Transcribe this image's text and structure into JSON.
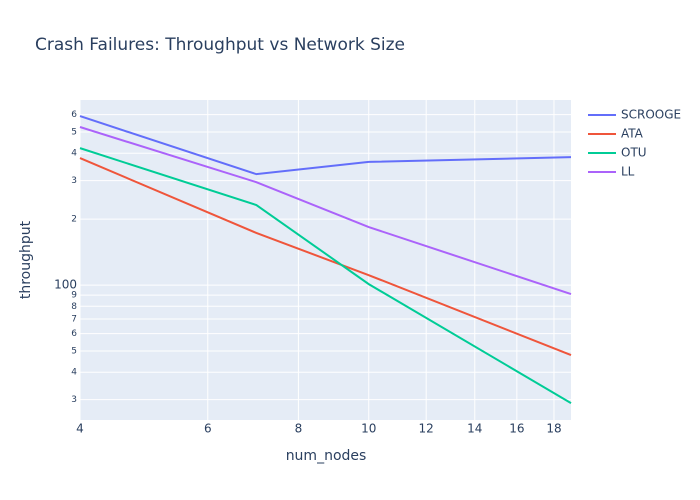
{
  "chart_data": {
    "type": "line",
    "title": "Crash Failures: Throughput vs Network Size",
    "x_label": "num_nodes",
    "y_label": "throughput",
    "x": [
      4,
      7,
      10,
      19
    ],
    "series": [
      {
        "name": "SCROOGE",
        "color": "#636efa",
        "values": [
          591,
          321,
          365,
          384
        ]
      },
      {
        "name": "ATA",
        "color": "#EF553B",
        "values": [
          380,
          173,
          111,
          47.9
        ]
      },
      {
        "name": "OTU",
        "color": "#00cc96",
        "values": [
          422,
          232,
          101,
          28.9
        ]
      },
      {
        "name": "LL",
        "color": "#ab63fa",
        "values": [
          527,
          295,
          184,
          91
        ]
      }
    ],
    "xlim": [
      4,
      19
    ],
    "ylim": [
      24.2,
      700
    ],
    "xticks": [
      4,
      6,
      8,
      10,
      12,
      14,
      16,
      18
    ],
    "yticks": [
      {
        "value": 30,
        "label": "3"
      },
      {
        "value": 40,
        "label": "4"
      },
      {
        "value": 50,
        "label": "5"
      },
      {
        "value": 60,
        "label": "6"
      },
      {
        "value": 70,
        "label": "7"
      },
      {
        "value": 80,
        "label": "8"
      },
      {
        "value": 90,
        "label": "9"
      },
      100,
      {
        "value": 200,
        "label": "2"
      },
      {
        "value": 300,
        "label": "3"
      },
      {
        "value": 400,
        "label": "4"
      },
      {
        "value": 500,
        "label": "5"
      },
      {
        "value": 600,
        "label": "6"
      }
    ],
    "xscale": "log",
    "yscale": "log",
    "grid": true,
    "legend": "right"
  }
}
